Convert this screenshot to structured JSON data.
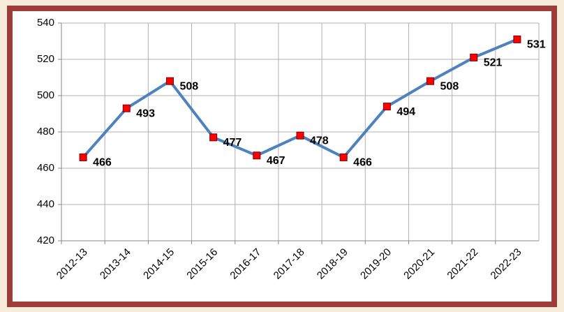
{
  "chart_data": {
    "type": "line",
    "categories": [
      "2012-13",
      "2013-14",
      "2014-15",
      "2015-16",
      "2016-17",
      "2017-18",
      "2018-19",
      "2019-20",
      "2020-21",
      "2021-22",
      "2022-23"
    ],
    "series": [
      {
        "name": "Series1",
        "color": "#4f81bd",
        "marker_color": "#ff0000",
        "values": [
          466,
          493,
          508,
          477,
          467,
          478,
          466,
          494,
          508,
          521,
          531
        ]
      }
    ],
    "ylim": [
      420,
      540
    ],
    "yticks": [
      420,
      440,
      460,
      480,
      500,
      520,
      540
    ],
    "grid": true,
    "legend": false
  }
}
